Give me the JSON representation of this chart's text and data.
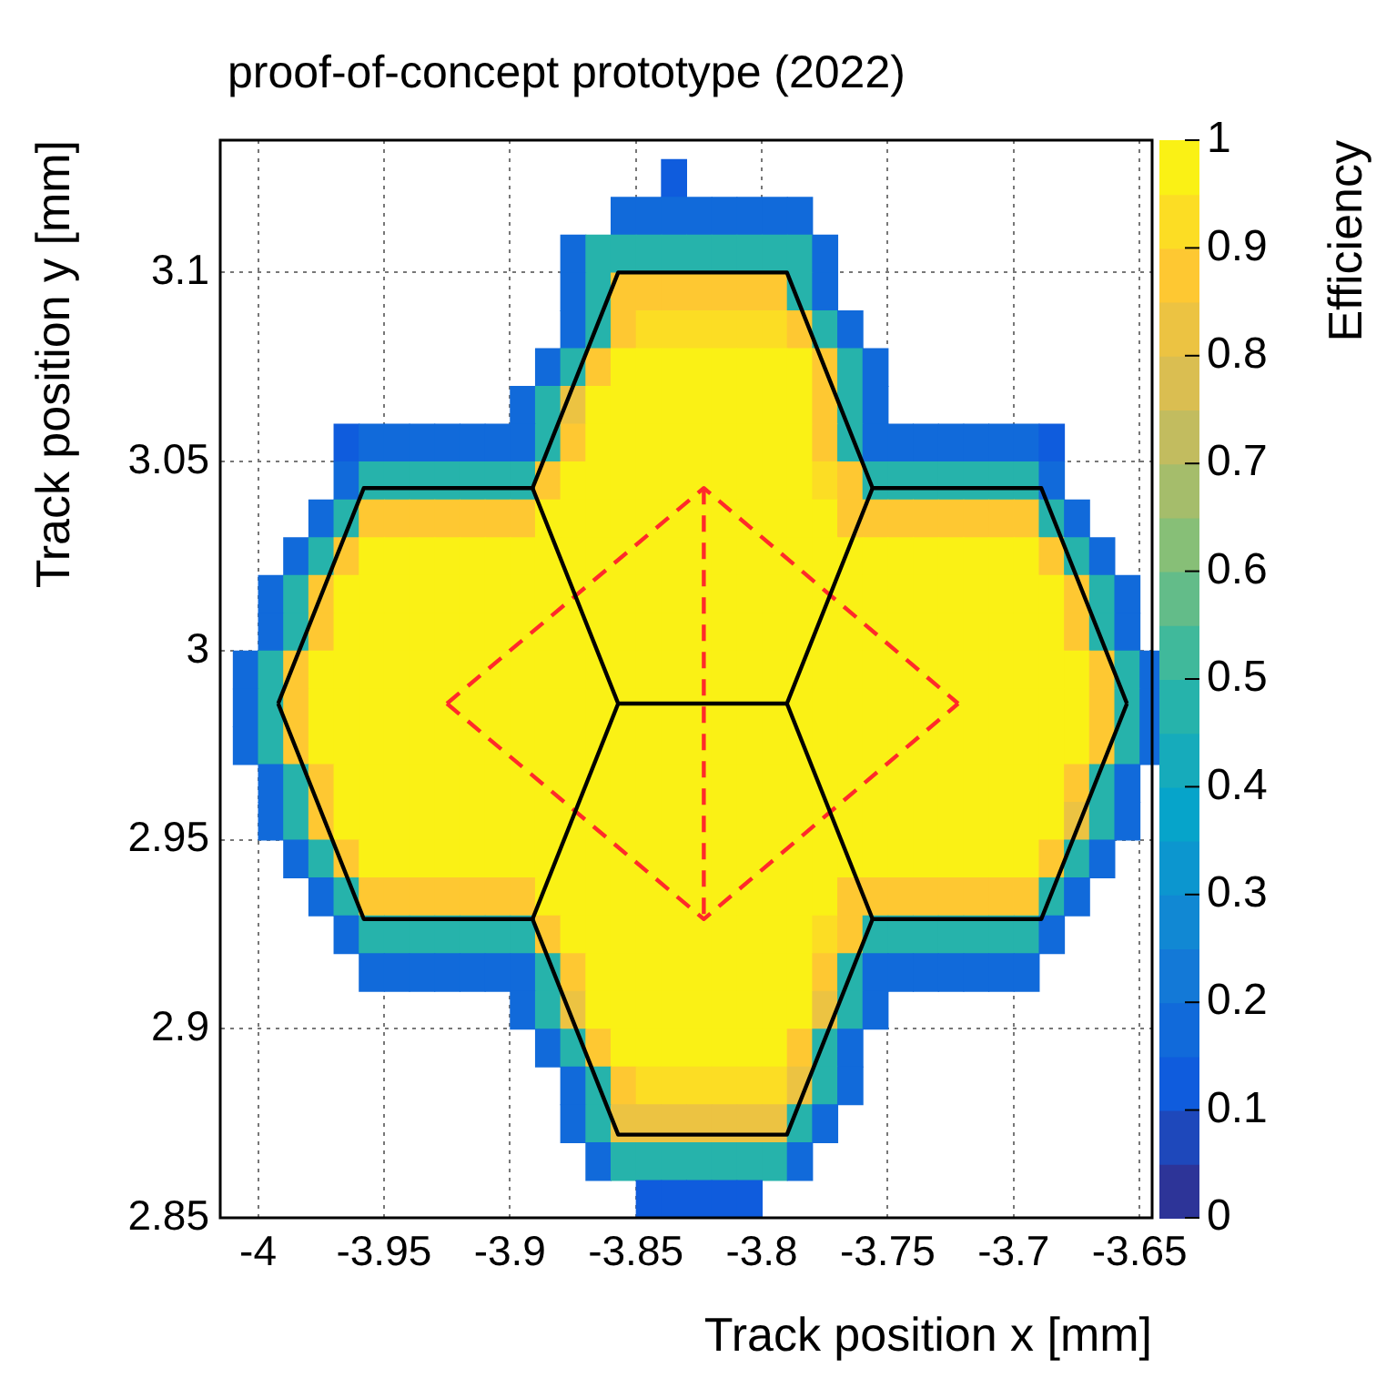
{
  "chart_data": {
    "type": "heatmap",
    "title": "proof-of-concept prototype (2022)",
    "xlabel": "Track position x [mm]",
    "ylabel": "Track position y [mm]",
    "clabel": "Efficiency",
    "x": [
      -4.005,
      -3.995,
      -3.985,
      -3.975,
      -3.965,
      -3.955,
      -3.945,
      -3.935,
      -3.925,
      -3.915,
      -3.905,
      -3.895,
      -3.885,
      -3.875,
      -3.865,
      -3.855,
      -3.845,
      -3.835,
      -3.825,
      -3.815,
      -3.805,
      -3.795,
      -3.785,
      -3.775,
      -3.765,
      -3.755,
      -3.745,
      -3.735,
      -3.725,
      -3.715,
      -3.705,
      -3.695,
      -3.685,
      -3.675,
      -3.665,
      -3.655,
      -3.645
    ],
    "y": [
      3.125,
      3.115,
      3.105,
      3.095,
      3.085,
      3.075,
      3.065,
      3.055,
      3.045,
      3.035,
      3.025,
      3.015,
      3.005,
      2.995,
      2.985,
      2.975,
      2.965,
      2.955,
      2.945,
      2.935,
      2.925,
      2.915,
      2.905,
      2.895,
      2.885,
      2.875,
      2.865,
      2.855
    ],
    "xlim": [
      -4.015,
      -3.645
    ],
    "ylim": [
      2.85,
      3.135
    ],
    "xticks": [
      -4,
      -3.95,
      -3.9,
      -3.85,
      -3.8,
      -3.75,
      -3.7,
      -3.65
    ],
    "yticks": [
      2.85,
      2.9,
      2.95,
      3,
      3.05,
      3.1
    ],
    "series": [
      {
        "type": "line",
        "color": "#000000",
        "x": [
          -3.992,
          -3.958,
          -3.891,
          -3.857,
          -3.79,
          -3.756,
          -3.689,
          -3.655
        ],
        "values": [
          2.986,
          3.043,
          3.043,
          3.1,
          3.1,
          3.043,
          3.043,
          2.986
        ]
      },
      {
        "type": "line",
        "color": "#000000",
        "x": [
          -3.992,
          -3.958,
          -3.891,
          -3.857,
          -3.79,
          -3.756,
          -3.689,
          -3.655
        ],
        "values": [
          2.986,
          2.929,
          2.929,
          2.872,
          2.872,
          2.929,
          2.929,
          2.986
        ]
      },
      {
        "type": "line",
        "color": "#000000",
        "x": [
          -3.891,
          -3.857,
          -3.79,
          -3.756
        ],
        "values": [
          3.043,
          2.986,
          2.986,
          3.043
        ]
      },
      {
        "type": "line",
        "color": "#000000",
        "x": [
          -3.891,
          -3.857
        ],
        "values": [
          2.929,
          2.986
        ]
      },
      {
        "type": "line",
        "color": "#000000",
        "x": [
          -3.79,
          -3.756
        ],
        "values": [
          2.986,
          2.929
        ]
      },
      {
        "type": "line",
        "color": "#ff2a2a",
        "line_style": "dashed",
        "x": [
          -3.925,
          -3.823,
          -3.722
        ],
        "values": [
          2.986,
          3.043,
          2.986
        ]
      },
      {
        "type": "line",
        "color": "#ff2a2a",
        "line_style": "dashed",
        "x": [
          -3.925,
          -3.823,
          -3.722
        ],
        "values": [
          2.986,
          2.929,
          2.986
        ]
      },
      {
        "type": "line",
        "color": "#ff2a2a",
        "line_style": "dashed",
        "x": [
          -3.823,
          -3.823
        ],
        "values": [
          3.043,
          2.929
        ]
      }
    ],
    "clim": [
      0,
      1
    ],
    "cticks": [
      0,
      0.1,
      0.2,
      0.3,
      0.4,
      0.5,
      0.6,
      0.7,
      0.8,
      0.9,
      1
    ],
    "grid": true,
    "cells": [
      [
        null,
        null,
        null,
        null,
        null,
        null,
        null,
        null,
        null,
        null,
        null,
        null,
        null,
        null,
        null,
        null,
        null,
        0.1,
        null,
        null,
        null,
        null,
        null,
        null,
        null,
        null,
        null,
        null,
        null,
        null,
        null,
        null,
        null,
        null,
        null,
        null,
        null
      ],
      [
        null,
        null,
        null,
        null,
        null,
        null,
        null,
        null,
        null,
        null,
        null,
        null,
        null,
        null,
        null,
        0.15,
        0.15,
        0.15,
        0.15,
        0.15,
        0.15,
        0.15,
        0.15,
        null,
        null,
        null,
        null,
        null,
        null,
        null,
        null,
        null,
        null,
        null,
        null,
        null,
        null
      ],
      [
        null,
        null,
        null,
        null,
        null,
        null,
        null,
        null,
        null,
        null,
        null,
        null,
        null,
        0.15,
        0.45,
        0.45,
        0.45,
        0.45,
        0.45,
        0.45,
        0.45,
        0.45,
        0.45,
        0.15,
        null,
        null,
        null,
        null,
        null,
        null,
        null,
        null,
        null,
        null,
        null,
        null,
        null
      ],
      [
        null,
        null,
        null,
        null,
        null,
        null,
        null,
        null,
        null,
        null,
        null,
        null,
        null,
        0.15,
        0.45,
        0.85,
        0.85,
        0.85,
        0.85,
        0.85,
        0.85,
        0.85,
        0.45,
        0.15,
        null,
        null,
        null,
        null,
        null,
        null,
        null,
        null,
        null,
        null,
        null,
        null,
        null
      ],
      [
        null,
        null,
        null,
        null,
        null,
        null,
        null,
        null,
        null,
        null,
        null,
        null,
        null,
        0.15,
        0.45,
        0.85,
        0.9,
        0.9,
        0.9,
        0.9,
        0.9,
        0.9,
        0.85,
        0.45,
        0.15,
        null,
        null,
        null,
        null,
        null,
        null,
        null,
        null,
        null,
        null,
        null,
        null
      ],
      [
        null,
        null,
        null,
        null,
        null,
        null,
        null,
        null,
        null,
        null,
        null,
        null,
        0.15,
        0.45,
        0.85,
        0.95,
        0.95,
        0.95,
        0.95,
        0.95,
        0.95,
        0.95,
        0.95,
        0.85,
        0.45,
        0.15,
        null,
        null,
        null,
        null,
        null,
        null,
        null,
        null,
        null,
        null,
        null
      ],
      [
        null,
        null,
        null,
        null,
        null,
        null,
        null,
        null,
        null,
        null,
        null,
        0.15,
        0.45,
        0.8,
        0.95,
        0.95,
        0.95,
        0.95,
        0.95,
        0.95,
        0.95,
        0.95,
        0.95,
        0.85,
        0.45,
        0.15,
        null,
        null,
        null,
        null,
        null,
        null,
        null,
        null,
        null,
        null,
        null
      ],
      [
        null,
        null,
        null,
        null,
        0.1,
        0.15,
        0.15,
        0.15,
        0.15,
        0.15,
        0.15,
        0.15,
        0.45,
        0.85,
        0.95,
        0.95,
        0.95,
        0.95,
        0.95,
        0.95,
        0.95,
        0.95,
        0.95,
        0.85,
        0.45,
        0.15,
        0.15,
        0.15,
        0.15,
        0.15,
        0.15,
        0.15,
        0.1,
        null,
        null,
        null,
        null
      ],
      [
        null,
        null,
        null,
        null,
        0.15,
        0.45,
        0.45,
        0.45,
        0.45,
        0.45,
        0.45,
        0.45,
        0.85,
        0.95,
        0.95,
        0.95,
        0.95,
        0.95,
        0.95,
        0.95,
        0.95,
        0.95,
        0.95,
        0.9,
        0.85,
        0.45,
        0.45,
        0.45,
        0.45,
        0.45,
        0.45,
        0.45,
        0.15,
        null,
        null,
        null,
        null
      ],
      [
        null,
        null,
        null,
        0.15,
        0.45,
        0.85,
        0.85,
        0.85,
        0.85,
        0.85,
        0.85,
        0.85,
        0.95,
        0.95,
        0.95,
        0.95,
        0.95,
        0.95,
        0.95,
        0.95,
        0.95,
        0.95,
        0.95,
        0.95,
        0.85,
        0.85,
        0.85,
        0.85,
        0.85,
        0.85,
        0.85,
        0.85,
        0.45,
        0.15,
        null,
        null,
        null
      ],
      [
        null,
        null,
        0.15,
        0.45,
        0.85,
        0.95,
        0.95,
        0.95,
        0.95,
        0.95,
        0.95,
        0.95,
        0.95,
        0.95,
        0.95,
        0.95,
        0.95,
        0.95,
        0.95,
        0.95,
        0.95,
        0.95,
        0.95,
        0.95,
        0.95,
        0.95,
        0.95,
        0.95,
        0.95,
        0.95,
        0.95,
        0.95,
        0.85,
        0.45,
        0.15,
        null,
        null
      ],
      [
        null,
        0.15,
        0.45,
        0.85,
        0.95,
        0.95,
        0.95,
        0.95,
        0.95,
        0.95,
        0.95,
        0.95,
        0.95,
        0.95,
        0.95,
        0.95,
        0.95,
        0.95,
        0.95,
        0.95,
        0.95,
        0.95,
        0.95,
        0.95,
        0.95,
        0.95,
        0.95,
        0.95,
        0.95,
        0.95,
        0.95,
        0.95,
        0.95,
        0.85,
        0.45,
        0.15,
        null
      ],
      [
        null,
        0.15,
        0.45,
        0.85,
        0.95,
        0.95,
        0.95,
        0.95,
        0.95,
        0.95,
        0.95,
        0.95,
        0.95,
        0.95,
        0.95,
        0.95,
        0.95,
        0.95,
        0.95,
        0.95,
        0.95,
        0.95,
        0.95,
        0.95,
        0.95,
        0.95,
        0.95,
        0.95,
        0.95,
        0.95,
        0.95,
        0.95,
        0.95,
        0.85,
        0.45,
        0.15,
        null
      ],
      [
        0.15,
        0.45,
        0.85,
        0.95,
        0.95,
        0.95,
        0.95,
        0.95,
        0.95,
        0.95,
        0.95,
        0.95,
        0.95,
        0.95,
        0.95,
        0.95,
        0.95,
        0.95,
        0.95,
        0.95,
        0.95,
        0.95,
        0.95,
        0.95,
        0.95,
        0.95,
        0.95,
        0.95,
        0.95,
        0.95,
        0.95,
        0.95,
        0.95,
        0.95,
        0.85,
        0.45,
        0.15
      ],
      [
        0.15,
        0.45,
        0.85,
        0.95,
        0.95,
        0.95,
        0.95,
        0.95,
        0.95,
        0.95,
        0.95,
        0.95,
        0.95,
        0.95,
        0.95,
        0.95,
        0.95,
        0.95,
        0.95,
        0.95,
        0.95,
        0.95,
        0.95,
        0.95,
        0.95,
        0.95,
        0.95,
        0.95,
        0.95,
        0.95,
        0.95,
        0.95,
        0.95,
        0.95,
        0.85,
        0.45,
        0.15
      ],
      [
        0.15,
        0.45,
        0.85,
        0.95,
        0.95,
        0.95,
        0.95,
        0.95,
        0.95,
        0.95,
        0.95,
        0.95,
        0.95,
        0.95,
        0.95,
        0.95,
        0.95,
        0.95,
        0.95,
        0.95,
        0.95,
        0.95,
        0.95,
        0.95,
        0.95,
        0.95,
        0.95,
        0.95,
        0.95,
        0.95,
        0.95,
        0.95,
        0.95,
        0.95,
        0.85,
        0.45,
        0.15
      ],
      [
        null,
        0.15,
        0.45,
        0.85,
        0.95,
        0.95,
        0.95,
        0.95,
        0.95,
        0.95,
        0.95,
        0.95,
        0.95,
        0.95,
        0.95,
        0.95,
        0.95,
        0.95,
        0.95,
        0.95,
        0.95,
        0.95,
        0.95,
        0.95,
        0.95,
        0.95,
        0.95,
        0.95,
        0.95,
        0.95,
        0.95,
        0.95,
        0.95,
        0.85,
        0.45,
        0.15,
        null
      ],
      [
        null,
        0.15,
        0.45,
        0.85,
        0.95,
        0.95,
        0.95,
        0.95,
        0.95,
        0.95,
        0.95,
        0.95,
        0.95,
        0.95,
        0.95,
        0.95,
        0.95,
        0.95,
        0.95,
        0.95,
        0.95,
        0.95,
        0.95,
        0.95,
        0.95,
        0.95,
        0.95,
        0.95,
        0.95,
        0.95,
        0.95,
        0.95,
        0.95,
        0.8,
        0.45,
        0.15,
        null
      ],
      [
        null,
        null,
        0.15,
        0.45,
        0.85,
        0.95,
        0.95,
        0.95,
        0.95,
        0.95,
        0.95,
        0.95,
        0.95,
        0.95,
        0.95,
        0.95,
        0.95,
        0.95,
        0.95,
        0.95,
        0.95,
        0.95,
        0.95,
        0.95,
        0.95,
        0.95,
        0.95,
        0.95,
        0.95,
        0.95,
        0.95,
        0.95,
        0.85,
        0.45,
        0.15,
        null,
        null
      ],
      [
        null,
        null,
        null,
        0.15,
        0.45,
        0.85,
        0.85,
        0.85,
        0.85,
        0.85,
        0.85,
        0.85,
        0.95,
        0.95,
        0.95,
        0.95,
        0.95,
        0.95,
        0.95,
        0.95,
        0.95,
        0.95,
        0.95,
        0.95,
        0.85,
        0.85,
        0.85,
        0.85,
        0.85,
        0.85,
        0.85,
        0.85,
        0.45,
        0.15,
        null,
        null,
        null
      ],
      [
        null,
        null,
        null,
        null,
        0.15,
        0.45,
        0.45,
        0.45,
        0.45,
        0.45,
        0.45,
        0.45,
        0.85,
        0.95,
        0.95,
        0.95,
        0.95,
        0.95,
        0.95,
        0.95,
        0.95,
        0.95,
        0.95,
        0.9,
        0.85,
        0.45,
        0.45,
        0.45,
        0.45,
        0.45,
        0.45,
        0.45,
        0.15,
        null,
        null,
        null,
        null
      ],
      [
        null,
        null,
        null,
        null,
        null,
        0.15,
        0.15,
        0.15,
        0.15,
        0.15,
        0.15,
        0.15,
        0.45,
        0.85,
        0.95,
        0.95,
        0.95,
        0.95,
        0.95,
        0.95,
        0.95,
        0.95,
        0.95,
        0.85,
        0.45,
        0.15,
        0.15,
        0.15,
        0.15,
        0.15,
        0.15,
        0.15,
        null,
        null,
        null,
        null,
        null
      ],
      [
        null,
        null,
        null,
        null,
        null,
        null,
        null,
        null,
        null,
        null,
        null,
        0.15,
        0.45,
        0.8,
        0.95,
        0.95,
        0.95,
        0.95,
        0.95,
        0.95,
        0.95,
        0.95,
        0.95,
        0.8,
        0.45,
        0.15,
        null,
        null,
        null,
        null,
        null,
        null,
        null,
        null,
        null,
        null,
        null
      ],
      [
        null,
        null,
        null,
        null,
        null,
        null,
        null,
        null,
        null,
        null,
        null,
        null,
        0.15,
        0.45,
        0.85,
        0.95,
        0.95,
        0.95,
        0.95,
        0.95,
        0.95,
        0.95,
        0.85,
        0.45,
        0.15,
        null,
        null,
        null,
        null,
        null,
        null,
        null,
        null,
        null,
        null,
        null,
        null
      ],
      [
        null,
        null,
        null,
        null,
        null,
        null,
        null,
        null,
        null,
        null,
        null,
        null,
        null,
        0.15,
        0.45,
        0.85,
        0.9,
        0.9,
        0.9,
        0.9,
        0.9,
        0.9,
        0.8,
        0.45,
        0.15,
        null,
        null,
        null,
        null,
        null,
        null,
        null,
        null,
        null,
        null,
        null,
        null
      ],
      [
        null,
        null,
        null,
        null,
        null,
        null,
        null,
        null,
        null,
        null,
        null,
        null,
        null,
        0.15,
        0.45,
        0.8,
        0.8,
        0.8,
        0.8,
        0.8,
        0.8,
        0.8,
        0.45,
        0.15,
        null,
        null,
        null,
        null,
        null,
        null,
        null,
        null,
        null,
        null,
        null,
        null,
        null
      ],
      [
        null,
        null,
        null,
        null,
        null,
        null,
        null,
        null,
        null,
        null,
        null,
        null,
        null,
        null,
        0.15,
        0.45,
        0.45,
        0.45,
        0.45,
        0.45,
        0.45,
        0.45,
        0.15,
        null,
        null,
        null,
        null,
        null,
        null,
        null,
        null,
        null,
        null,
        null,
        null,
        null,
        null
      ],
      [
        null,
        null,
        null,
        null,
        null,
        null,
        null,
        null,
        null,
        null,
        null,
        null,
        null,
        null,
        null,
        null,
        0.1,
        0.1,
        0.1,
        0.1,
        0.1,
        null,
        null,
        null,
        null,
        null,
        null,
        null,
        null,
        null,
        null,
        null,
        null,
        null,
        null,
        null,
        null
      ]
    ]
  }
}
